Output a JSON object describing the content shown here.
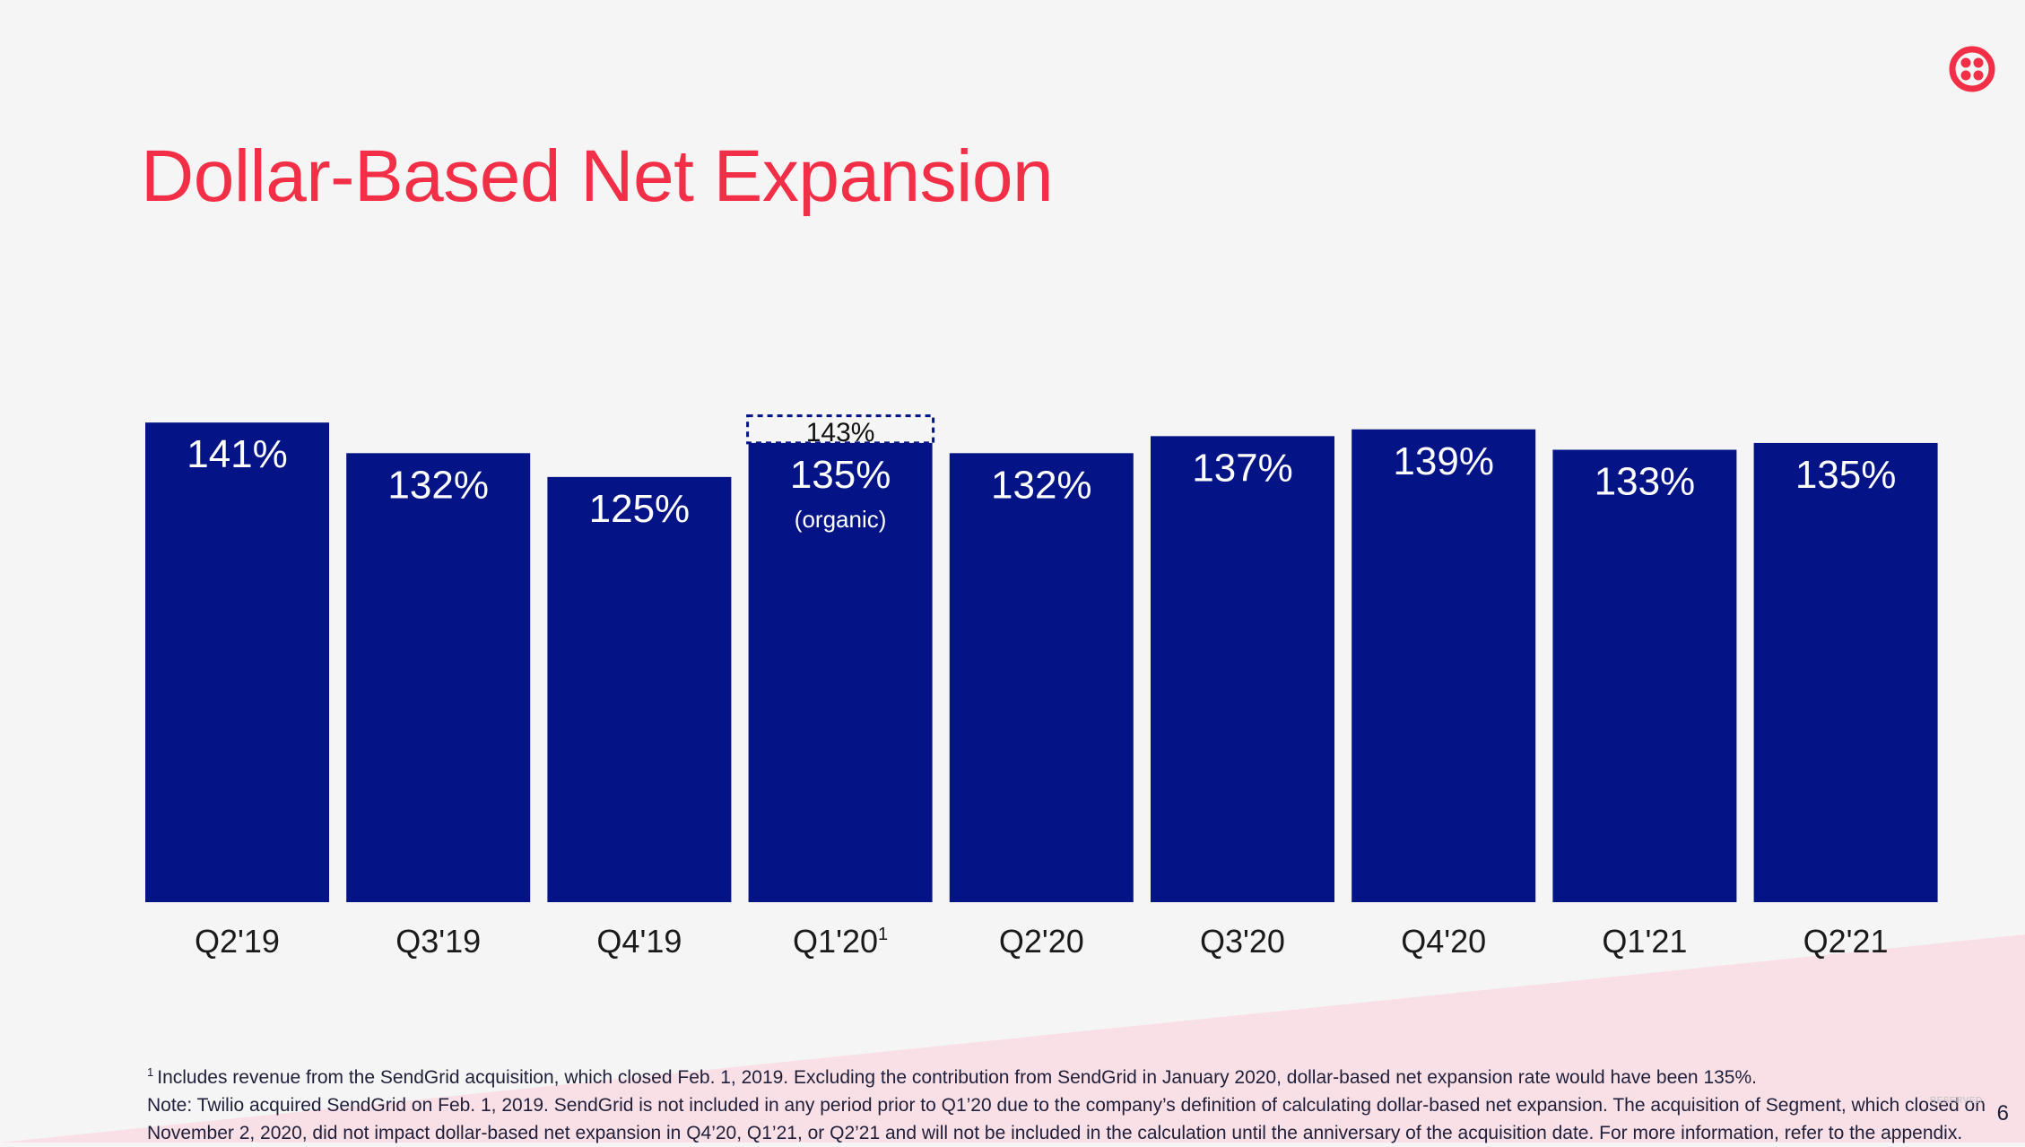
{
  "title": "Dollar-Based Net Expansion",
  "colors": {
    "bar": "#041486",
    "title": "#f22f46",
    "bar_label": "#ffffff",
    "axis_label": "#1a1a1a",
    "background": "#f5f5f5",
    "wedge": "#f8e0e6",
    "organic_box_border": "#041486"
  },
  "logo": {
    "icon": "twilio-logo-icon"
  },
  "chart_data": {
    "type": "bar",
    "categories": [
      "Q2'19",
      "Q3'19",
      "Q4'19",
      "Q1'20",
      "Q2'20",
      "Q3'20",
      "Q4'20",
      "Q1'21",
      "Q2'21"
    ],
    "category_superscripts": [
      "",
      "",
      "",
      "1",
      "",
      "",
      "",
      "",
      ""
    ],
    "values": [
      141,
      132,
      125,
      135,
      132,
      137,
      139,
      133,
      135
    ],
    "value_labels": [
      "141%",
      "132%",
      "125%",
      "135%",
      "132%",
      "137%",
      "139%",
      "133%",
      "135%"
    ],
    "bar_sublabels": [
      "",
      "",
      "",
      "(organic)",
      "",
      "",
      "",
      "",
      ""
    ],
    "annotation": {
      "category": "Q1'20",
      "value": 143,
      "label": "143%",
      "style": "dashed-box"
    },
    "ylim": [
      0,
      145
    ],
    "grid": false,
    "legend": "none"
  },
  "footnotes": {
    "note1_marker": "1",
    "note1": "Includes revenue from the SendGrid acquisition, which closed Feb. 1, 2019. Excluding the contribution from SendGrid in January 2020, dollar-based net expansion rate would have been 135%.",
    "note2_line1": "Note: Twilio acquired SendGrid on Feb. 1, 2019. SendGrid is not included in any period prior to Q1’20 due to the company’s definition of calculating dollar-based net expansion. The acquisition of Segment, which closed on",
    "note2_line2": "November 2, 2020, did not impact dollar-based net expansion in Q4’20, Q1’21, or Q2’21 and will not be included in the calculation until the anniversary of the acquisition date. For more information, refer to the appendix."
  },
  "copyright": "RESERVED.",
  "page_number": "6"
}
